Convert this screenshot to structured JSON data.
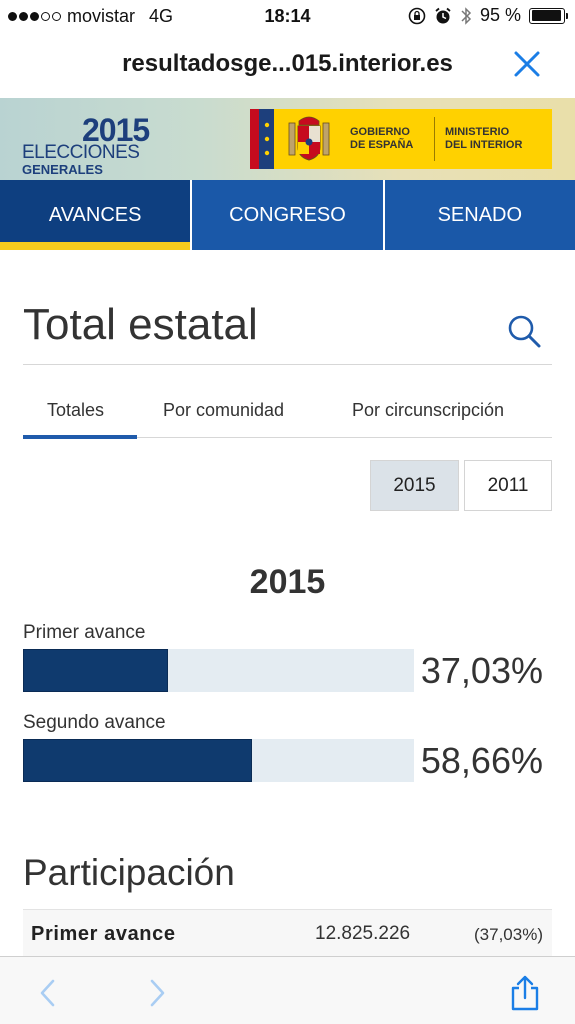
{
  "status_bar": {
    "signal_dots_filled": 3,
    "signal_dots_total": 5,
    "carrier": "movistar",
    "network": "4G",
    "time": "18:14",
    "battery": "95 %",
    "battery_level": 0.95
  },
  "browser": {
    "url": "resultadosge...015.interior.es",
    "close_icon": "close-icon"
  },
  "banner": {
    "brand_year": "2015",
    "brand_line1": "ELECCIONES",
    "brand_line2": "GENERALES",
    "gov_line1": "GOBIERNO",
    "gov_line2": "DE ESPAÑA",
    "min_line1": "MINISTERIO",
    "min_line2": "DEL INTERIOR"
  },
  "nav_tabs": [
    {
      "label": "AVANCES",
      "active": true
    },
    {
      "label": "CONGRESO",
      "active": false
    },
    {
      "label": "SENADO",
      "active": false
    }
  ],
  "page": {
    "title": "Total estatal",
    "search_icon": "search-icon"
  },
  "sub_tabs": [
    {
      "label": "Totales",
      "active": true
    },
    {
      "label": "Por comunidad",
      "active": false
    },
    {
      "label": "Por circunscripción",
      "active": false
    }
  ],
  "year_buttons": [
    {
      "label": "2015",
      "selected": true
    },
    {
      "label": "2011",
      "selected": false
    }
  ],
  "advances": {
    "year_heading": "2015",
    "items": [
      {
        "label": "Primer avance",
        "percent_text": "37,03%",
        "value": 37.03
      },
      {
        "label": "Segundo avance",
        "percent_text": "58,66%",
        "value": 58.66
      }
    ]
  },
  "participation": {
    "title": "Participación",
    "rows": [
      {
        "label": "Primer avance",
        "votes": "12.825.226",
        "percent": "(37,03%)"
      }
    ]
  },
  "colors": {
    "nav_blue": "#1a58a8",
    "nav_active": "#0e3f80",
    "accent_yellow": "#f6cc1d",
    "bar_fill": "#0f3a6e",
    "bar_track": "#e4ecf2",
    "ios_blue": "#1b7ee6"
  },
  "toolbar": {
    "back_icon": "chevron-left-icon",
    "forward_icon": "chevron-right-icon",
    "share_icon": "share-icon"
  }
}
